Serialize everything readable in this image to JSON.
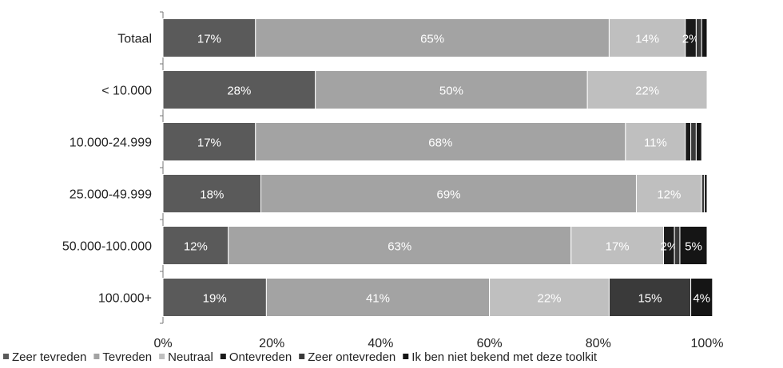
{
  "chart_data": {
    "type": "bar",
    "orientation": "horizontal",
    "stacked": true,
    "categories": [
      "Totaal",
      "< 10.000",
      "10.000-24.999",
      "25.000-49.999",
      "50.000-100.000",
      "100.000+"
    ],
    "series": [
      {
        "name": "Zeer tevreden",
        "values": [
          17,
          28,
          17,
          18,
          12,
          19
        ],
        "labels": [
          "17%",
          "28%",
          "17%",
          "18%",
          "12%",
          "19%"
        ],
        "color": "#5a5a5a"
      },
      {
        "name": "Tevreden",
        "values": [
          65,
          50,
          68,
          69,
          63,
          41
        ],
        "labels": [
          "65%",
          "50%",
          "68%",
          "69%",
          "63%",
          "41%"
        ],
        "color": "#a3a3a3"
      },
      {
        "name": "Neutraal",
        "values": [
          14,
          22,
          11,
          12,
          17,
          22
        ],
        "labels": [
          "14%",
          "22%",
          "11%",
          "12%",
          "17%",
          "22%"
        ],
        "color": "#bfbfbf"
      },
      {
        "name": "Ontevreden",
        "values": [
          2,
          0,
          1,
          0,
          2,
          0
        ],
        "labels": [
          "2%",
          "",
          "",
          "",
          "2%",
          ""
        ],
        "color": "#1a1a1a"
      },
      {
        "name": "Zeer ontevreden",
        "values": [
          1,
          0,
          1,
          0.5,
          1,
          15
        ],
        "labels": [
          "",
          "",
          "",
          "",
          "",
          "15%"
        ],
        "color": "#3a3a3a"
      },
      {
        "name": "Ik ben niet bekend met deze toolkit",
        "values": [
          1,
          0,
          1,
          0.5,
          5,
          4
        ],
        "labels": [
          "",
          "",
          "",
          "",
          "5%",
          "4%"
        ],
        "color": "#151515"
      }
    ],
    "xlim": [
      0,
      100
    ],
    "xticks": [
      "0%",
      "20%",
      "40%",
      "60%",
      "80%",
      "100%"
    ],
    "legend_position": "bottom",
    "grid": false
  }
}
